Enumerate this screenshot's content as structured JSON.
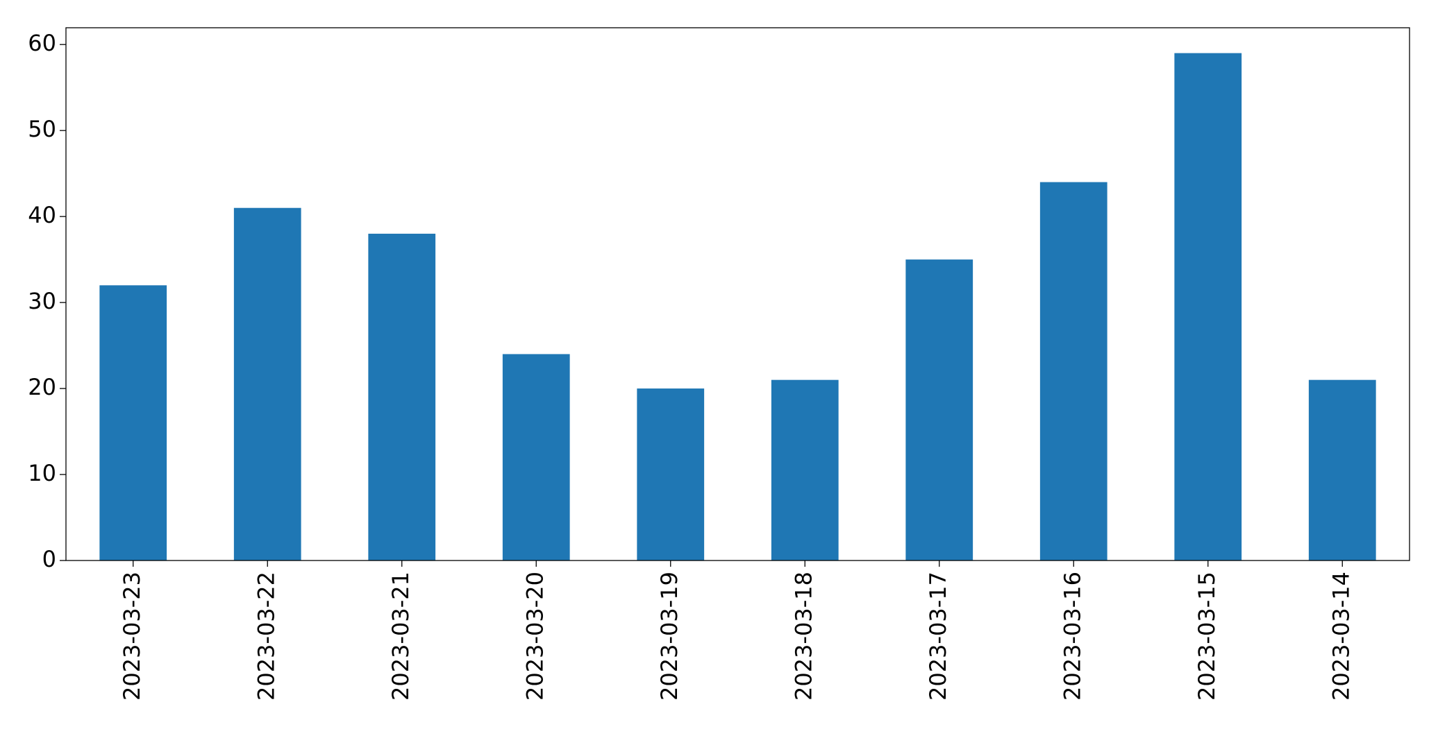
{
  "chart_data": {
    "type": "bar",
    "categories": [
      "2023-03-23",
      "2023-03-22",
      "2023-03-21",
      "2023-03-20",
      "2023-03-19",
      "2023-03-18",
      "2023-03-17",
      "2023-03-16",
      "2023-03-15",
      "2023-03-14"
    ],
    "values": [
      32,
      41,
      38,
      24,
      20,
      21,
      35,
      44,
      59,
      21
    ],
    "color": "#1f77b4",
    "ylim": [
      0,
      61.95
    ],
    "yticks": [
      0,
      10,
      20,
      30,
      40,
      50,
      60
    ],
    "grid": false
  }
}
